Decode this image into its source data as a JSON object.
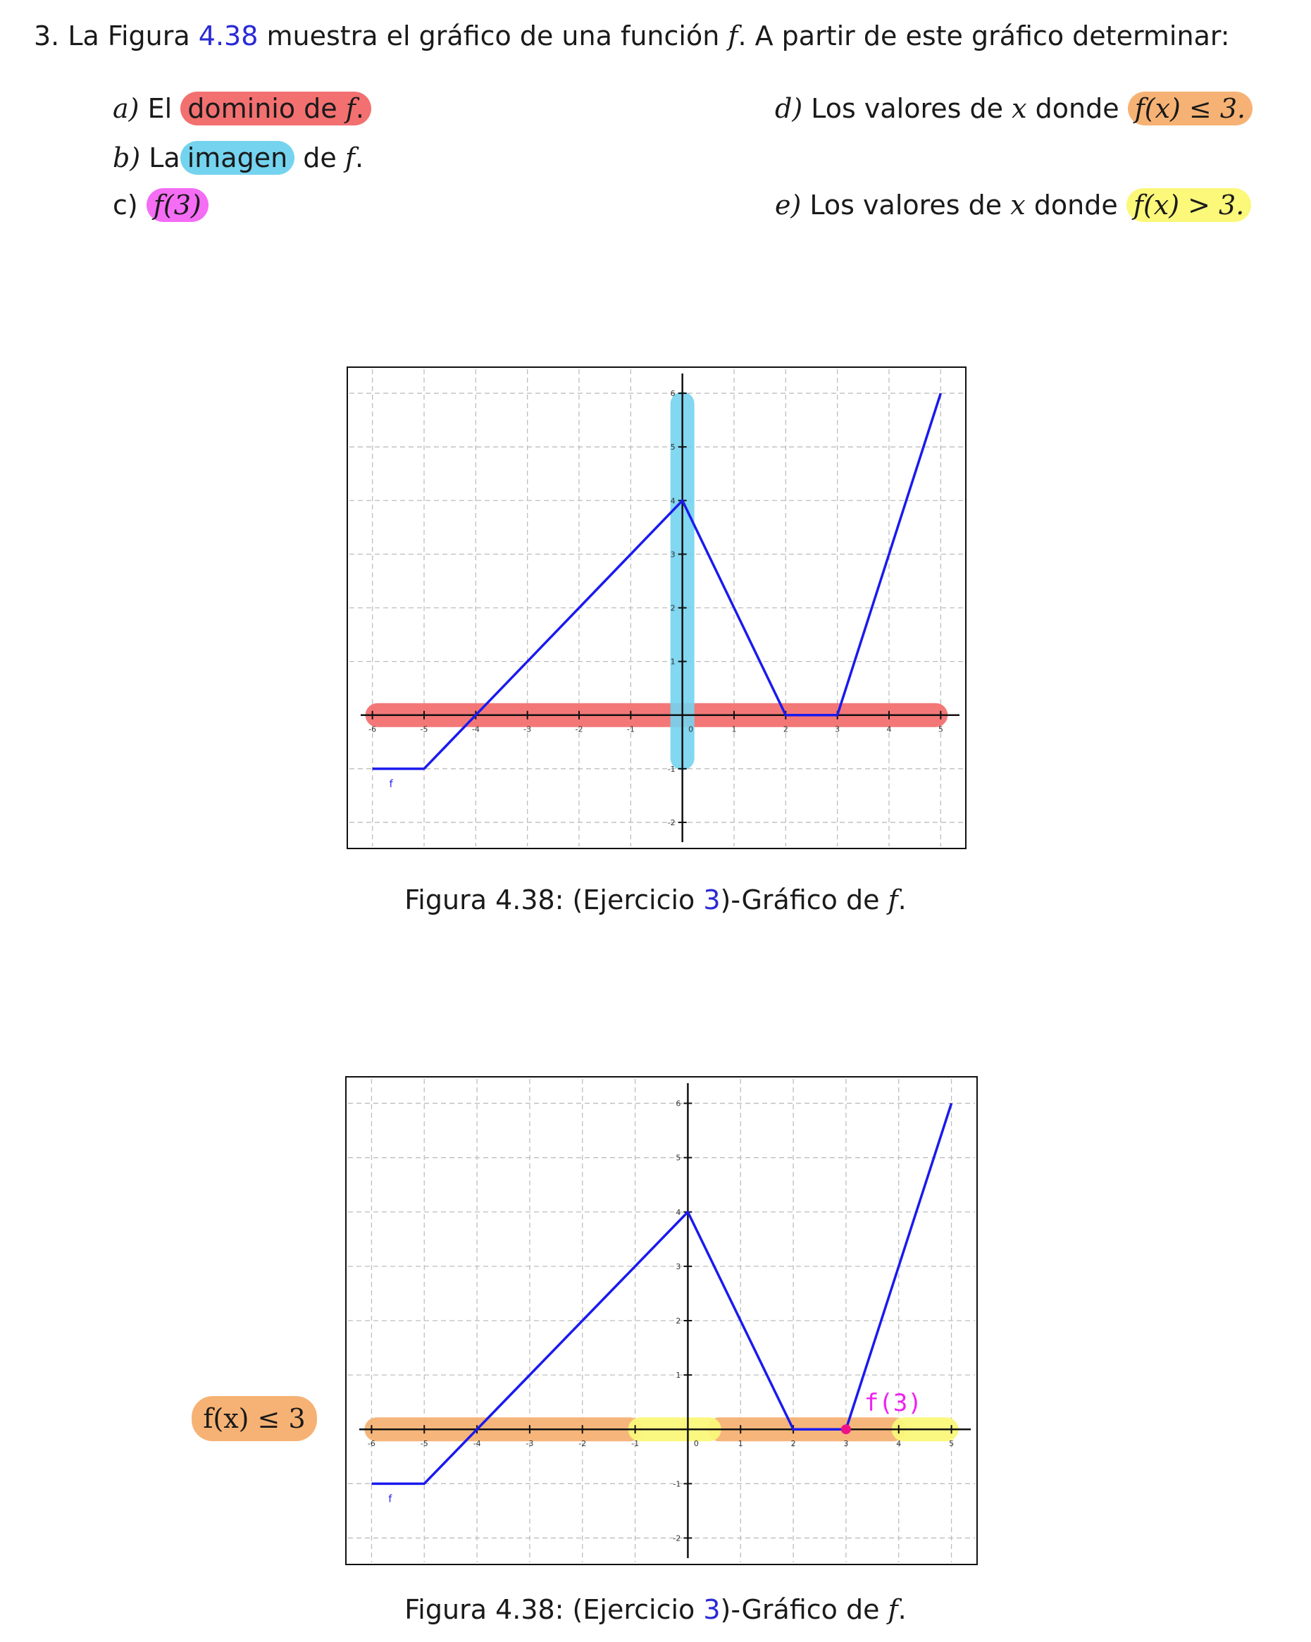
{
  "exercise": {
    "number": "3.",
    "intro_pre": "La Figura",
    "figure_ref": "4.38",
    "intro_mid": "muestra el gráfico de una función",
    "intro_f": "f",
    "intro_post": ". A partir de este gráfico determinar:",
    "items": {
      "a": {
        "label": "a)",
        "pre": "El",
        "hl": "dominio de",
        "f": "f",
        "post": "."
      },
      "b": {
        "label": "b)",
        "pre": "La",
        "hl": "imagen",
        "post_word": "de",
        "f": "f",
        "post": "."
      },
      "c": {
        "label": "c)",
        "expr": "f(3)"
      },
      "d": {
        "label": "d)",
        "pre": "Los valores de",
        "x": "x",
        "mid": "donde",
        "expr": "f(x) ≤ 3."
      },
      "e": {
        "label": "e)",
        "pre": "Los valores de",
        "x": "x",
        "mid": "donde",
        "expr": "f(x) > 3."
      }
    }
  },
  "captions": [
    {
      "pre": "Figura 4.38: (Ejercicio",
      "ref": "3",
      "post": ")-Gráfico de",
      "f": "f",
      "end": "."
    },
    {
      "pre": "Figura 4.38: (Ejercicio",
      "ref": "3",
      "post": ")-Gráfico de",
      "f": "f",
      "end": "."
    }
  ],
  "side_label": "f(x) ≤ 3",
  "colors": {
    "curve": "#1a1aee",
    "domain_highlight": "#f37070",
    "image_highlight": "#74d3ef",
    "leq_highlight": "#f6b274",
    "gt_highlight": "#fbf87a",
    "point": "#ee1188"
  },
  "chart_data": [
    {
      "type": "line",
      "series": [
        {
          "name": "f",
          "x": [
            -6,
            -5,
            -4,
            0,
            2,
            3,
            5
          ],
          "y": [
            -1,
            -1,
            0,
            4,
            0,
            0,
            6
          ]
        }
      ],
      "x_ticks": [
        "-6",
        "-5",
        "-4",
        "-3",
        "-2",
        "-1",
        "0",
        "1",
        "2",
        "3",
        "4",
        "5"
      ],
      "y_ticks": [
        "-2",
        "-1",
        "1",
        "2",
        "3",
        "4",
        "5",
        "6"
      ],
      "xlim": [
        -6.5,
        5.5
      ],
      "ylim": [
        -2.5,
        6.5
      ],
      "grid": true,
      "annotations": {
        "domain_band": [
          -6,
          5
        ],
        "image_band": [
          -1,
          6
        ]
      }
    },
    {
      "type": "line",
      "series": [
        {
          "name": "f",
          "x": [
            -6,
            -5,
            -4,
            0,
            2,
            3,
            5
          ],
          "y": [
            -1,
            -1,
            0,
            4,
            0,
            0,
            6
          ]
        }
      ],
      "x_ticks": [
        "-6",
        "-5",
        "-4",
        "-3",
        "-2",
        "-1",
        "0",
        "1",
        "2",
        "3",
        "4",
        "5"
      ],
      "y_ticks": [
        "-2",
        "-1",
        "1",
        "2",
        "3",
        "4",
        "5",
        "6"
      ],
      "xlim": [
        -6.5,
        5.5
      ],
      "ylim": [
        -2.5,
        6.5
      ],
      "grid": true,
      "annotations": {
        "leq_bands": [
          [
            -6,
            -1
          ],
          [
            0.5,
            4
          ]
        ],
        "gt_bands": [
          [
            -1,
            0.5
          ],
          [
            4,
            5
          ]
        ],
        "point": {
          "x": 3,
          "y": 0,
          "label": "f(3)"
        }
      }
    }
  ]
}
